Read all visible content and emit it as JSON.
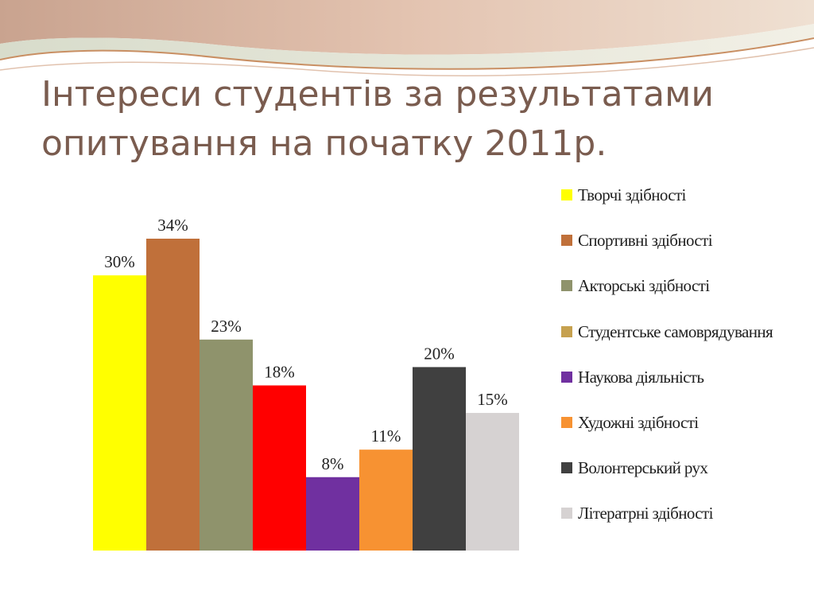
{
  "title": "Інтереси студентів за результатами опитування на початку 2011р.",
  "chart_data": {
    "type": "bar",
    "categories": [
      "Творчі здібності",
      "Спортивні здібності",
      "Акторські здібності",
      "Студентське самоврядування",
      "Наукова діяльність",
      "Художні здібності",
      "Волонтерський рух",
      "Літературні здібності"
    ],
    "series": [
      {
        "name": "Творчі здібності",
        "value": 30,
        "label": "30%",
        "color": "#ffff00"
      },
      {
        "name": "Спортивні здібності",
        "value": 34,
        "label": "34%",
        "color": "#c0703a"
      },
      {
        "name": "Акторські здібності",
        "value": 23,
        "label": "23%",
        "color": "#8f936c"
      },
      {
        "name": "Студентське самоврядування",
        "value": 18,
        "label": "18%",
        "color": "#ff0000"
      },
      {
        "name": "Наукова діяльність",
        "value": 8,
        "label": "8%",
        "color": "#7030a0"
      },
      {
        "name": "Художні здібності",
        "value": 11,
        "label": "11%",
        "color": "#f79232"
      },
      {
        "name": "Волонтерський рух",
        "value": 20,
        "label": "20%",
        "color": "#404040"
      },
      {
        "name": "Літературні здібності",
        "value": 15,
        "label": "15%",
        "color": "#d6d2d2"
      }
    ],
    "legend": [
      {
        "text": "Творчі здібності",
        "color": "#ffff00"
      },
      {
        "text": "Спортивні здібності",
        "color": "#c0703a"
      },
      {
        "text": "Акторські здібності",
        "color": "#8f936c"
      },
      {
        "text": "Студентське самоврядування",
        "color": "#c6a14f"
      },
      {
        "text": "Наукова діяльність",
        "color": "#7030a0"
      },
      {
        "text": "Художні здібності",
        "color": "#f79232"
      },
      {
        "text": "Волонтерський рух",
        "color": "#404040"
      },
      {
        "text": "Літератрні здібності",
        "color": "#d6d2d2"
      }
    ],
    "ylim": [
      0,
      34
    ],
    "grid": false,
    "legend_position": "right"
  }
}
